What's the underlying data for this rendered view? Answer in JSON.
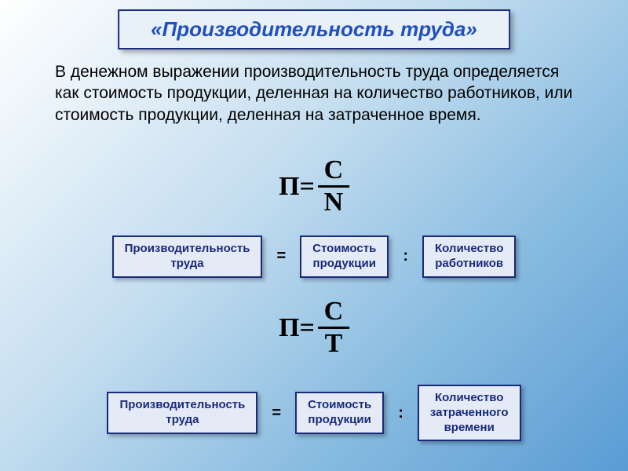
{
  "title": "«Производительность труда»",
  "description": "В денежном выражении производительность труда определяется как стоимость продукции, деленная на количество работников, или стоимость продукции, деленная на затраченное время.",
  "formula1": {
    "lhs": "П=",
    "numerator": "С",
    "denominator": "N"
  },
  "formula2": {
    "lhs": "П=",
    "numerator": "С",
    "denominator": "Т"
  },
  "row1": {
    "term1_line1": "Производительность",
    "term1_line2": "труда",
    "op1": "=",
    "term2_line1": "Стоимость",
    "term2_line2": "продукции",
    "op2": ":",
    "term3_line1": "Количество",
    "term3_line2": "работников"
  },
  "row2": {
    "term1_line1": "Производительность",
    "term1_line2": "труда",
    "op1": "=",
    "term2_line1": "Стоимость",
    "term2_line2": "продукции",
    "op2": ":",
    "term3_line1": "Количество",
    "term3_line2": "затраченного",
    "term3_line3": "времени"
  }
}
